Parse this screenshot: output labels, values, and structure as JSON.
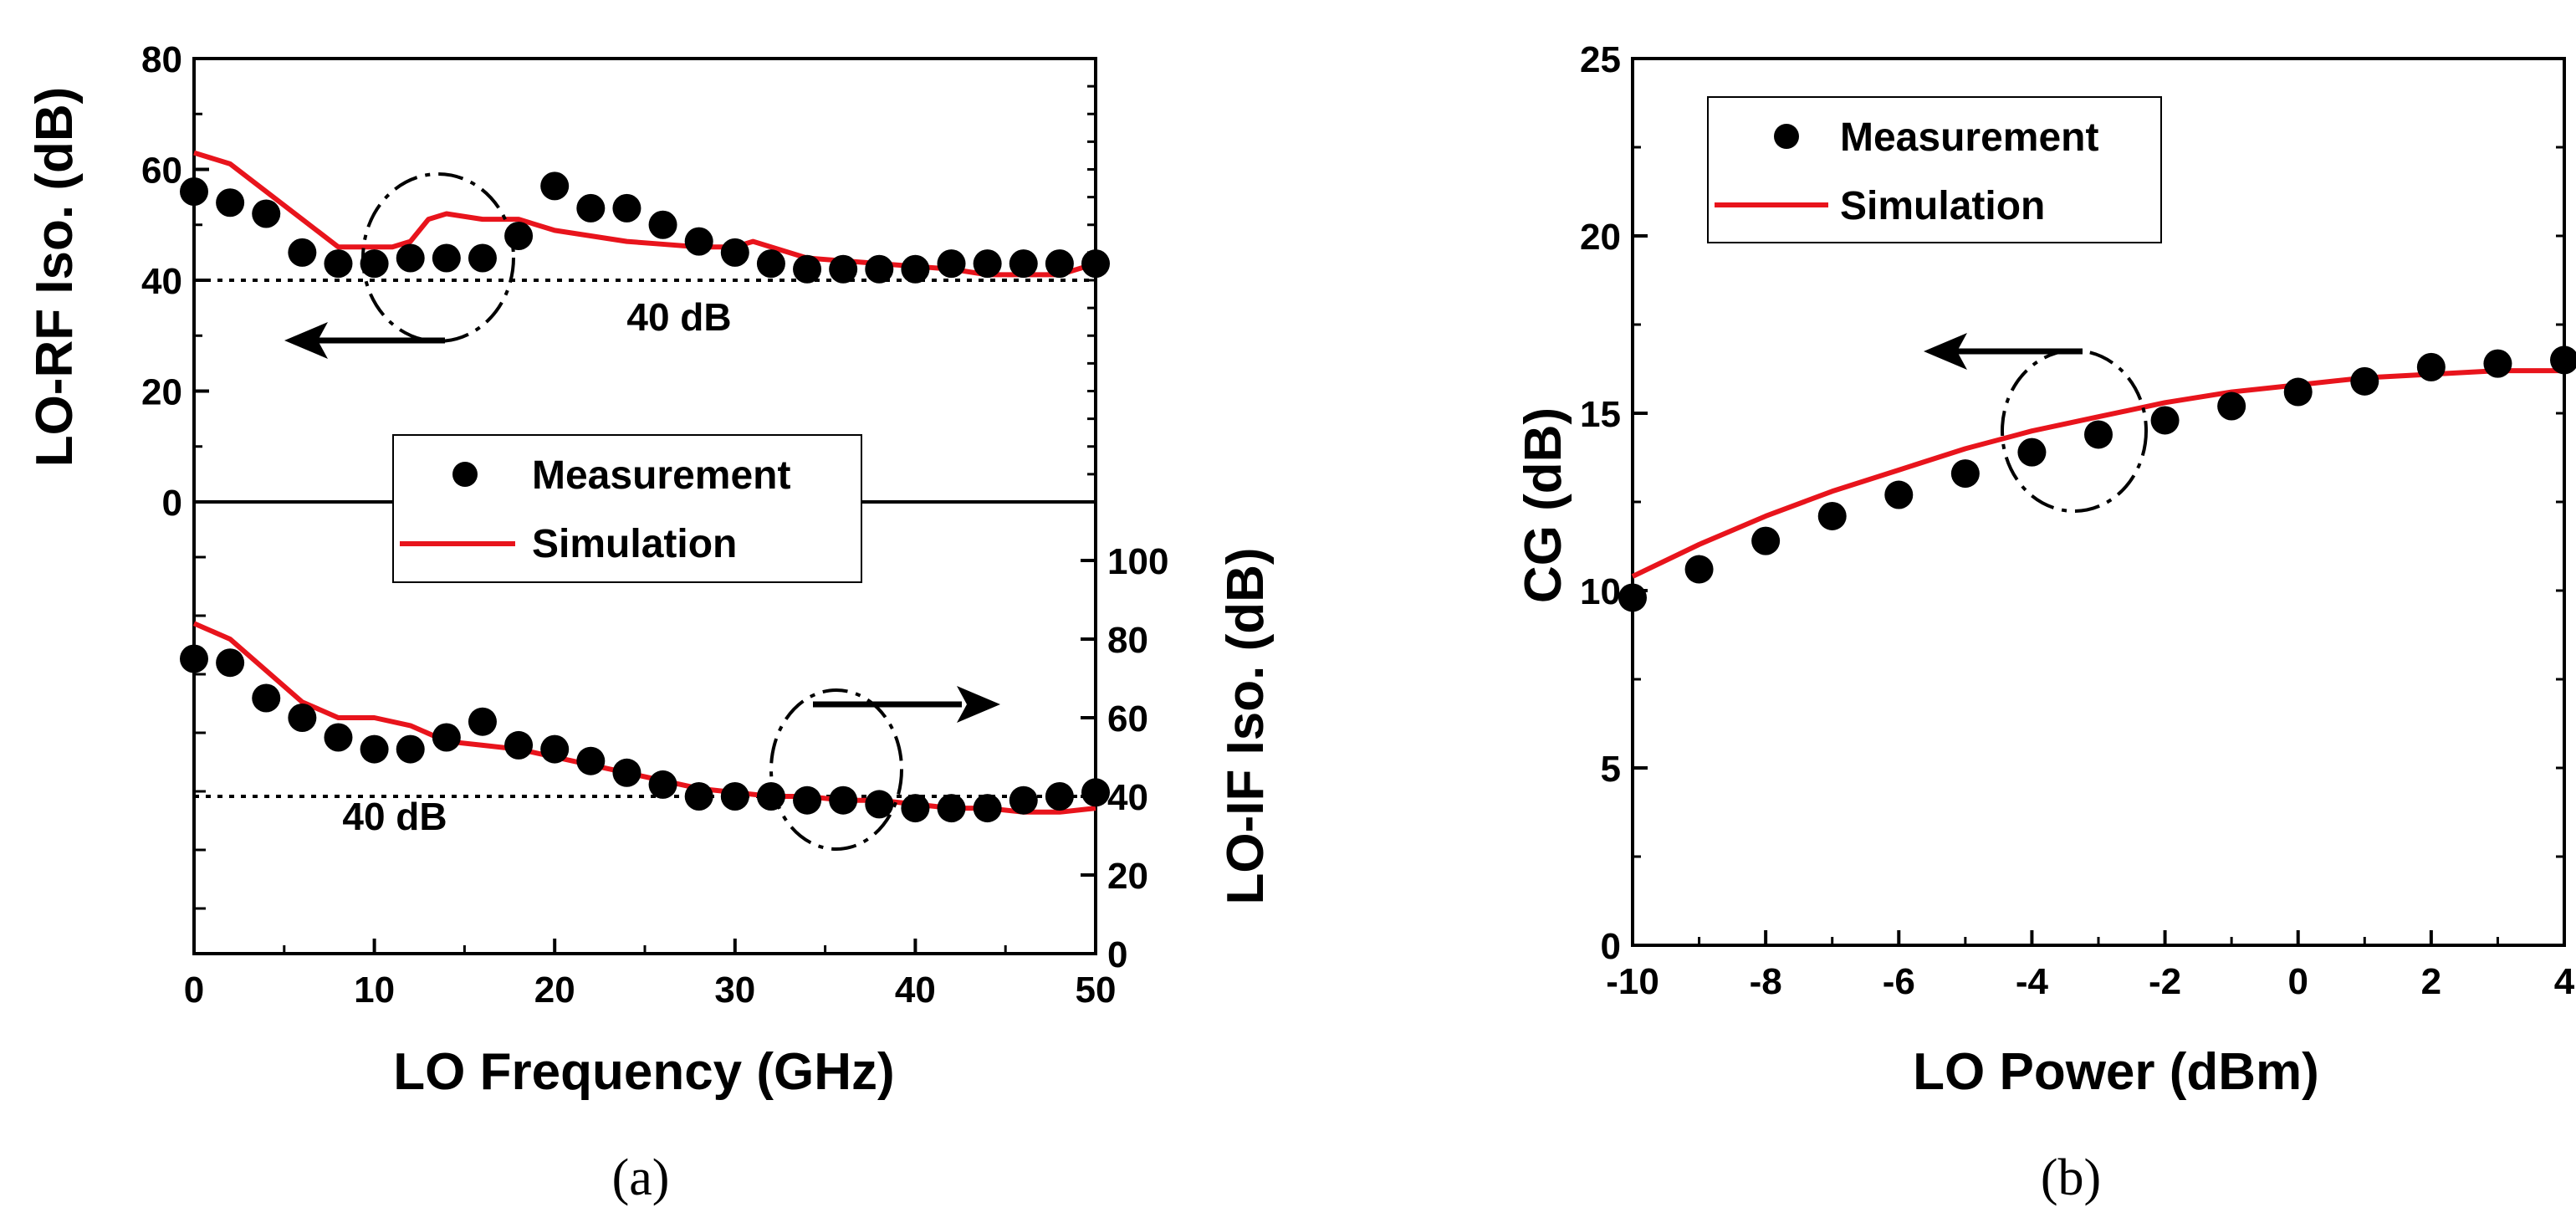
{
  "chart_data": [
    {
      "id": "a",
      "type": "scatter+line",
      "panel_label": "(a)",
      "xlabel": "LO Frequency (GHz)",
      "xlim": [
        0,
        50
      ],
      "xticks": [
        0,
        10,
        20,
        30,
        40,
        50
      ],
      "top": {
        "ylabel": "LO-RF Iso. (dB)",
        "ylim": [
          0,
          80
        ],
        "yticks": [
          0,
          20,
          40,
          60,
          80
        ],
        "reference_value": 40,
        "reference_label": "40 dB",
        "arrow_direction": "left",
        "measurement": {
          "x": [
            0,
            2,
            4,
            6,
            8,
            10,
            12,
            14,
            16,
            18,
            20,
            22,
            24,
            26,
            28,
            30,
            32,
            34,
            36,
            38,
            40,
            42,
            44,
            46,
            48,
            50
          ],
          "y": [
            56,
            54,
            52,
            45,
            43,
            43,
            44,
            44,
            44,
            48,
            57,
            53,
            53,
            50,
            47,
            45,
            43,
            42,
            42,
            42,
            42,
            43,
            43,
            43,
            43,
            43
          ]
        },
        "simulation": {
          "x": [
            0,
            2,
            4,
            6,
            8,
            10,
            11,
            12,
            13,
            14,
            16,
            18,
            20,
            22,
            24,
            26,
            28,
            30,
            31,
            32,
            34,
            36,
            38,
            40,
            42,
            44,
            46,
            48,
            50
          ],
          "y": [
            63,
            61,
            56,
            51,
            46,
            46,
            46,
            47,
            51,
            52,
            51,
            51,
            49,
            48,
            47,
            46.5,
            46,
            46,
            47,
            46,
            44,
            43.5,
            43,
            42.5,
            42,
            41,
            41,
            41,
            43
          ]
        }
      },
      "bottom": {
        "ylabel": "LO-IF Iso. (dB)",
        "ylim": [
          0,
          100
        ],
        "yticks": [
          0,
          20,
          40,
          60,
          80,
          100
        ],
        "reference_value": 40,
        "reference_label": "40 dB",
        "arrow_direction": "right",
        "measurement": {
          "x": [
            0,
            2,
            4,
            6,
            8,
            10,
            12,
            14,
            16,
            18,
            20,
            22,
            24,
            26,
            28,
            30,
            32,
            34,
            36,
            38,
            40,
            42,
            44,
            46,
            48,
            50
          ],
          "y": [
            75,
            74,
            65,
            60,
            55,
            52,
            52,
            55,
            59,
            53,
            52,
            49,
            46,
            43,
            40,
            40,
            40,
            39,
            39,
            38,
            37,
            37,
            37,
            39,
            40,
            41
          ]
        },
        "simulation": {
          "x": [
            0,
            2,
            4,
            6,
            8,
            10,
            12,
            14,
            16,
            18,
            20,
            22,
            24,
            26,
            28,
            30,
            32,
            34,
            36,
            38,
            40,
            42,
            44,
            46,
            48,
            50
          ],
          "y": [
            84,
            80,
            72,
            64,
            60,
            60,
            58,
            54,
            53,
            52,
            50,
            48,
            46,
            44,
            42,
            41,
            40,
            40,
            39,
            39,
            38,
            37,
            37,
            36,
            36,
            37
          ]
        }
      },
      "legend": [
        "Measurement",
        "Simulation"
      ]
    },
    {
      "id": "b",
      "type": "scatter+line",
      "panel_label": "(b)",
      "xlabel": "LO Power (dBm)",
      "ylabel": "CG (dB)",
      "xlim": [
        -10,
        4
      ],
      "ylim": [
        0,
        25
      ],
      "xticks": [
        -10,
        -8,
        -6,
        -4,
        -2,
        0,
        2,
        4
      ],
      "yticks": [
        0,
        5,
        10,
        15,
        20,
        25
      ],
      "arrow_direction": "left",
      "legend": [
        "Measurement",
        "Simulation"
      ],
      "measurement": {
        "x": [
          -10,
          -9,
          -8,
          -7,
          -6,
          -5,
          -4,
          -3,
          -2,
          -1,
          0,
          1,
          2,
          3,
          4
        ],
        "y": [
          9.8,
          10.6,
          11.4,
          12.1,
          12.7,
          13.3,
          13.9,
          14.4,
          14.8,
          15.2,
          15.6,
          15.9,
          16.3,
          16.4,
          16.5
        ]
      },
      "simulation": {
        "x": [
          -10,
          -9,
          -8,
          -7,
          -6,
          -5,
          -4,
          -3,
          -2,
          -1,
          0,
          1,
          2,
          3,
          4
        ],
        "y": [
          10.4,
          11.3,
          12.1,
          12.8,
          13.4,
          14.0,
          14.5,
          14.9,
          15.3,
          15.6,
          15.8,
          16.0,
          16.1,
          16.2,
          16.2
        ]
      }
    }
  ],
  "colors": {
    "measurement": "#000000",
    "simulation": "#e8141c",
    "axis": "#000000"
  }
}
